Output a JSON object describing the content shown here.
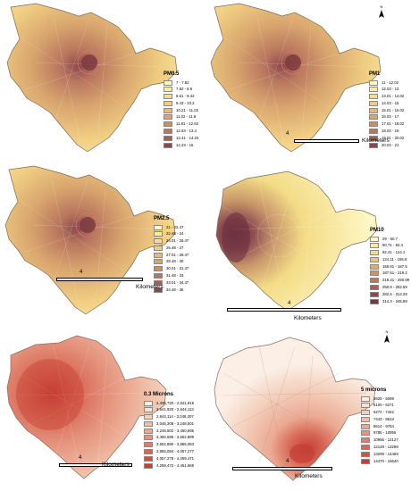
{
  "panels": [
    {
      "id": "pm05",
      "title": "PM0.5",
      "colors": [
        "#fff6c8",
        "#fbeaa4",
        "#f6dc8e",
        "#f0cd82",
        "#e5ba78",
        "#d8a56e",
        "#c98e66",
        "#b8765e",
        "#a35e55",
        "#8c474b"
      ],
      "hotspot": "#7d3a40",
      "labels": [
        "7 - 7.82",
        "7.82 - 8.6",
        "8.61 - 9.42",
        "9.43 - 10.2",
        "10.21 - 11.02",
        "11.02 - 11.8",
        "11.81 - 12.62",
        "12.63 - 13.4",
        "13.41 - 14.22",
        "14.23 - 15"
      ]
    },
    {
      "id": "pm1",
      "title": "PM1",
      "colors": [
        "#fff6c8",
        "#fbeaa4",
        "#f6dc8e",
        "#f0cd82",
        "#e5ba78",
        "#d8a56e",
        "#c98e66",
        "#b8765e",
        "#a35e55",
        "#8c474b"
      ],
      "hotspot": "#7d3a40",
      "labels": [
        "11 - 12.02",
        "12.03 - 13",
        "13.01 - 14.02",
        "14.03 - 15",
        "15.01 - 16.02",
        "16.03 - 17",
        "17.01 - 18.02",
        "18.03 - 19",
        "19.01 - 20.02",
        "20.03 - 21"
      ],
      "scale": {
        "number": "4",
        "unit": "Kilometers"
      }
    },
    {
      "id": "pm25",
      "title": "PM2.5",
      "colors": [
        "#fff6c8",
        "#fbeaa4",
        "#f6dc8e",
        "#f0cd82",
        "#e5ba78",
        "#d8a56e",
        "#c98e66",
        "#b8765e",
        "#a35e55",
        "#8c474b"
      ],
      "hotspot": "#7d3a40",
      "labels": [
        "21 - 22.47",
        "22.48 - 24",
        "24.01 - 25.47",
        "25.48 - 27",
        "27.01 - 28.47",
        "28.48 - 30",
        "30.01 - 31.47",
        "31.48 - 33",
        "33.01 - 34.47",
        "34.48 - 36"
      ],
      "scale": {
        "number": "4",
        "unit": "Kilometers"
      }
    },
    {
      "id": "pm10",
      "title": "PM10",
      "colors": [
        "#fff7c6",
        "#fbec9e",
        "#f3dc86",
        "#e8c77b",
        "#d9b072",
        "#c8966a",
        "#b57b62",
        "#a1615a",
        "#8b4a50",
        "#733644"
      ],
      "hotspot": "#6b2e3e",
      "labels": [
        "29 - 60.7",
        "60.71 - 92.4",
        "92.41 - 124.1",
        "124.11 - 155.8",
        "155.81 - 187.5",
        "187.51 - 219.2",
        "219.21 - 250.89",
        "250.9 - 282.59",
        "282.6 - 314.29",
        "314.3 - 345.99"
      ],
      "scale": {
        "number": "4",
        "unit": "Kilometers"
      }
    },
    {
      "id": "um03",
      "title": "0.3 Microns",
      "colors": [
        "#fbefe6",
        "#f8e0d2",
        "#f4d0bd",
        "#f0bea7",
        "#eba992",
        "#e5937c",
        "#de7d68",
        "#d66755",
        "#cd5244",
        "#c43e35"
      ],
      "hotspot": "#c84034",
      "labels": [
        "2,436,720 - 2,641,919",
        "2,641,920 - 2,844,113",
        "2,844,114 - 3,046,307",
        "3,046,308 - 3,248,501",
        "3,248,502 - 3,450,695",
        "3,450,696 - 3,652,889",
        "3,652,890 - 3,855,083",
        "3,855,084 - 4,057,277",
        "4,057,278 - 4,259,471",
        "4,259,472 - 4,461,665"
      ],
      "scale": {
        "number": "4",
        "unit": "Kilometers"
      }
    },
    {
      "id": "um5",
      "title": "5 microns",
      "colors": [
        "#fbefe6",
        "#f8e0d2",
        "#f4d0bd",
        "#f0bea7",
        "#eba992",
        "#e5937c",
        "#de7d68",
        "#d66755",
        "#cd5244",
        "#c43e35"
      ],
      "hotspot": "#c43e35",
      "labels": [
        "3928 - 5099",
        "5100 - 6271",
        "6272 - 7442",
        "7443 - 8613",
        "8614 - 9784",
        "9785 - 10955",
        "10956 - 12127",
        "12128 - 13298",
        "13299 - 14469",
        "14470 - 15640"
      ],
      "scale": {
        "number": "4",
        "unit": "Kilometers"
      }
    }
  ],
  "north_letter": "N"
}
